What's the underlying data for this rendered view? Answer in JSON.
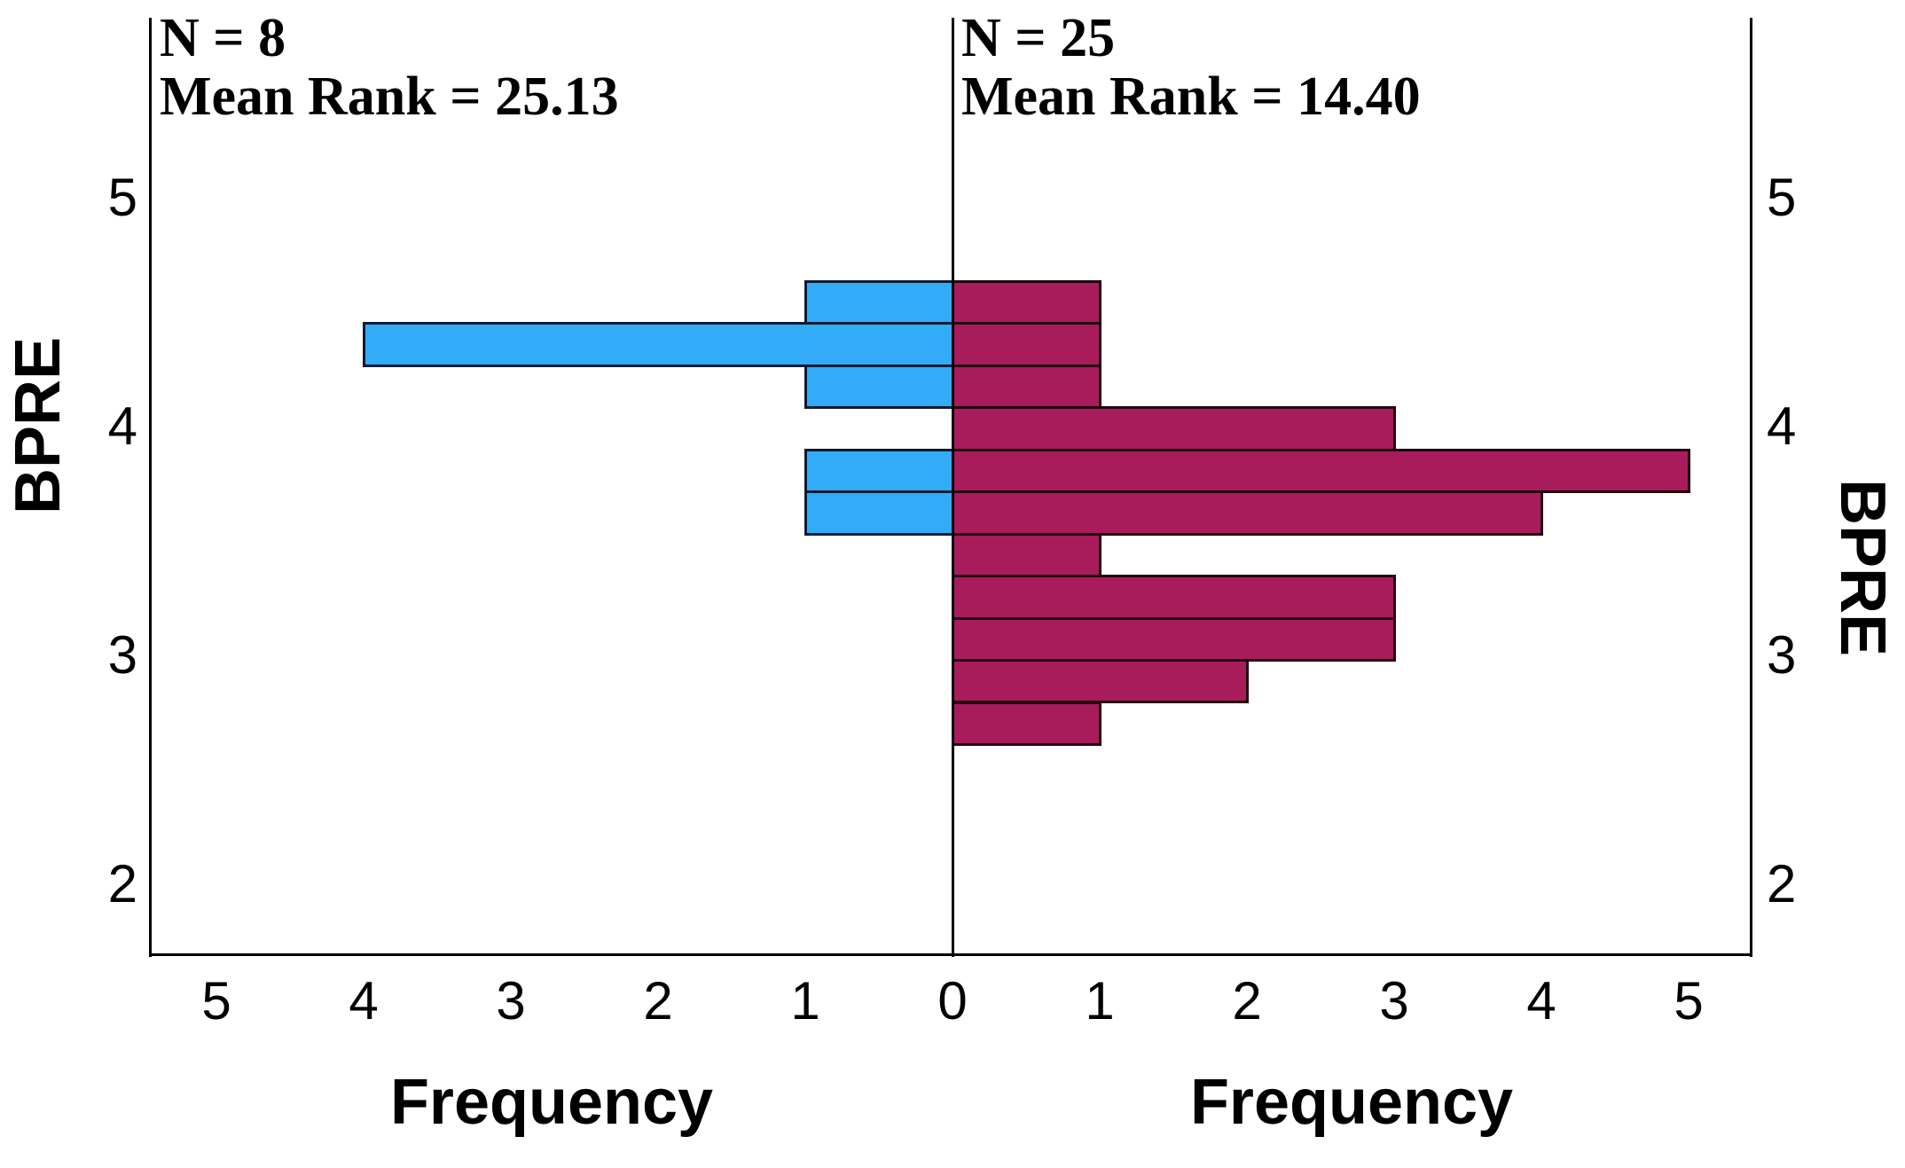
{
  "panels": {
    "left": {
      "n_label": "N = 8",
      "mean_rank_label": "Mean Rank = 25.13",
      "xlabel": "Frequency",
      "ylabel": "BPRE"
    },
    "right": {
      "n_label": "N = 25",
      "mean_rank_label": "Mean Rank = 14.40",
      "xlabel": "Frequency",
      "ylabel": "BPRE"
    }
  },
  "colors": {
    "left_fill": "#33ACF7",
    "left_border": "#0D1B33",
    "right_fill": "#A81C5C",
    "right_border": "#20050E",
    "axis": "#000000",
    "background": "#FFFFFF"
  },
  "chart_data": {
    "type": "bar",
    "variant": "back-to-back horizontal histogram (population pyramid)",
    "orientation": "horizontal",
    "y_variable": "BPRE",
    "x_variable": "Frequency",
    "bin_width": 0.18,
    "bin_centers": [
      4.54,
      4.36,
      4.18,
      3.99,
      3.81,
      3.63,
      3.44,
      3.26,
      3.08,
      2.89,
      2.71
    ],
    "series": [
      {
        "name": "left-group",
        "n": 8,
        "mean_rank": 25.13,
        "fill": "#33ACF7",
        "border": "#0D1B33",
        "direction": "left",
        "values": [
          1,
          4,
          1,
          0,
          1,
          1,
          0,
          0,
          0,
          0,
          0
        ]
      },
      {
        "name": "right-group",
        "n": 25,
        "mean_rank": 14.4,
        "fill": "#A81C5C",
        "border": "#20050E",
        "direction": "right",
        "values": [
          1,
          1,
          1,
          3,
          5,
          4,
          1,
          3,
          3,
          2,
          1
        ]
      }
    ],
    "axes": {
      "y_ticks": [
        5,
        4,
        3,
        2
      ],
      "x_ticks_left": [
        5,
        4,
        3,
        2,
        1
      ],
      "x_center_tick": 0,
      "x_ticks_right": [
        1,
        2,
        3,
        4,
        5
      ],
      "x_range": [
        0,
        5.45
      ],
      "y_range": [
        1.69,
        5.79
      ],
      "grid": false,
      "legend": "none"
    },
    "annotations": [
      {
        "panel": "left",
        "lines": [
          "N = 8",
          "Mean Rank = 25.13"
        ]
      },
      {
        "panel": "right",
        "lines": [
          "N = 25",
          "Mean Rank = 14.40"
        ]
      }
    ]
  }
}
